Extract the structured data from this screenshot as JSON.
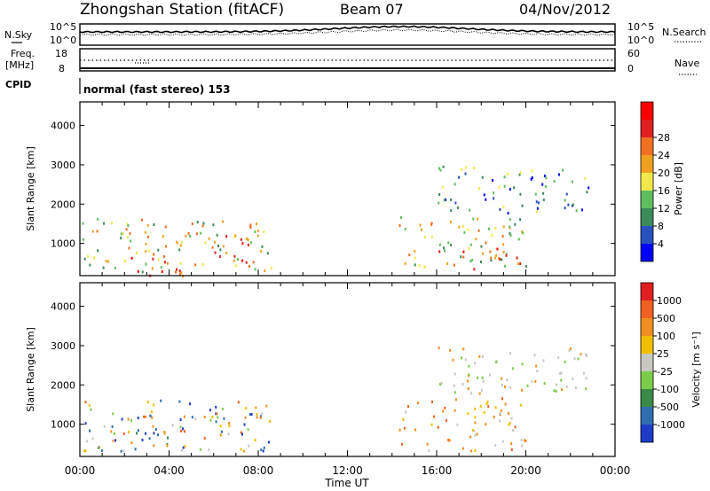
{
  "header": {
    "station": "Zhongshan Station (fitACF)",
    "beam": "Beam 07",
    "date": "04/Nov/2012"
  },
  "top_panel": {
    "left_label_1": "N.Sky",
    "left_ticks_1": [
      "10^5",
      "10^0"
    ],
    "right_ticks_1": [
      "10^5",
      "10^0"
    ],
    "right_label_1": "N.Search",
    "left_label_2a": "Freq.",
    "left_label_2b": "[MHz]",
    "left_ticks_2": [
      "18",
      "8"
    ],
    "right_ticks_2": [
      "60",
      "0"
    ],
    "right_label_2": "Nave",
    "cpid_label": "CPID",
    "mode_text": "normal (fast stereo) 153"
  },
  "chart_data": [
    {
      "type": "heatmap",
      "panel": "power",
      "ylabel": "Slant Range [km]",
      "yticks": [
        "1000",
        "2000",
        "3000",
        "4000"
      ],
      "ylim": [
        180,
        4600
      ],
      "xlim": [
        0,
        24
      ],
      "colorbar": {
        "label": "Power [dB]",
        "ticks": [
          "4",
          "8",
          "12",
          "16",
          "20",
          "24",
          "28"
        ],
        "colors": [
          "#0000ff",
          "#2a52be",
          "#3b8a5a",
          "#5fbf5f",
          "#f2e84b",
          "#f0a020",
          "#f07020",
          "#e02020",
          "#ff0000"
        ]
      },
      "regions": [
        {
          "t0": 0.1,
          "t1": 8.6,
          "r0": 300,
          "r1": 1650,
          "level": "high"
        },
        {
          "t0": 2.0,
          "t1": 4.8,
          "r0": 200,
          "r1": 700,
          "level": "max"
        },
        {
          "t0": 5.8,
          "t1": 7.6,
          "r0": 500,
          "r1": 1400,
          "level": "max"
        },
        {
          "t0": 14.3,
          "t1": 20.0,
          "r0": 400,
          "r1": 1700,
          "level": "high"
        },
        {
          "t0": 16.0,
          "t1": 19.8,
          "r0": 350,
          "r1": 900,
          "level": "max"
        },
        {
          "t0": 16.0,
          "t1": 22.8,
          "r0": 1800,
          "r1": 3000,
          "level": "mid"
        }
      ]
    },
    {
      "type": "heatmap",
      "panel": "velocity",
      "ylabel": "Slant Range [km]",
      "xlabel": "Time UT",
      "xticks": [
        "00:00",
        "04:00",
        "08:00",
        "12:00",
        "16:00",
        "20:00",
        "00:00"
      ],
      "yticks": [
        "1000",
        "2000",
        "3000",
        "4000"
      ],
      "ylim": [
        180,
        4600
      ],
      "xlim": [
        0,
        24
      ],
      "colorbar": {
        "label": "Velocity [m s⁻¹]",
        "ticks": [
          "1000",
          "500",
          "100",
          "25",
          "-25",
          "-100",
          "-500",
          "-1000"
        ],
        "colors": [
          "#1e3cc8",
          "#2f6fb0",
          "#3a8a4a",
          "#7acc4a",
          "#c8c8c0",
          "#f0c000",
          "#f09020",
          "#f06020",
          "#e02020"
        ]
      },
      "regions": [
        {
          "t0": 0.1,
          "t1": 8.6,
          "r0": 300,
          "r1": 1650,
          "level": "mixed-toward"
        },
        {
          "t0": 2.0,
          "t1": 4.2,
          "r0": 350,
          "r1": 1250,
          "level": "toward"
        },
        {
          "t0": 14.3,
          "t1": 20.0,
          "r0": 350,
          "r1": 1700,
          "level": "away"
        },
        {
          "t0": 16.0,
          "t1": 22.8,
          "r0": 1800,
          "r1": 3000,
          "level": "low"
        }
      ]
    }
  ]
}
